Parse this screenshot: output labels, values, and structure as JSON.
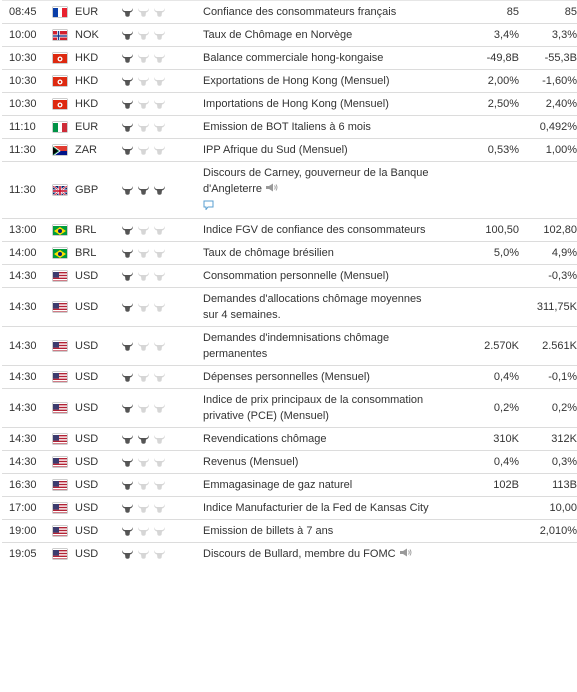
{
  "rows": [
    {
      "time": "08:45",
      "flag": "fr",
      "currency": "EUR",
      "importance": 1,
      "event": "Confiance des consommateurs français",
      "actual": "85",
      "previous": "85"
    },
    {
      "time": "10:00",
      "flag": "no",
      "currency": "NOK",
      "importance": 1,
      "event": "Taux de Chômage en Norvège",
      "actual": "3,4%",
      "previous": "3,3%"
    },
    {
      "time": "10:30",
      "flag": "hk",
      "currency": "HKD",
      "importance": 1,
      "event": "Balance commerciale hong-kongaise",
      "actual": "-49,8B",
      "previous": "-55,3B"
    },
    {
      "time": "10:30",
      "flag": "hk",
      "currency": "HKD",
      "importance": 1,
      "event": "Exportations de Hong Kong (Mensuel)",
      "actual": "2,00%",
      "previous": "-1,60%"
    },
    {
      "time": "10:30",
      "flag": "hk",
      "currency": "HKD",
      "importance": 1,
      "event": "Importations de Hong Kong (Mensuel)",
      "actual": "2,50%",
      "previous": "2,40%"
    },
    {
      "time": "11:10",
      "flag": "it",
      "currency": "EUR",
      "importance": 1,
      "event": "Emission de BOT Italiens à 6 mois",
      "actual": "",
      "previous": "0,492%"
    },
    {
      "time": "11:30",
      "flag": "za",
      "currency": "ZAR",
      "importance": 1,
      "event": "IPP Afrique du Sud (Mensuel)",
      "actual": "0,53%",
      "previous": "1,00%"
    },
    {
      "time": "11:30",
      "flag": "gb",
      "currency": "GBP",
      "importance": 3,
      "event": "Discours de Carney, gouverneur de la Banque d'Angleterre",
      "actual": "",
      "previous": "",
      "speech": true,
      "comment": true
    },
    {
      "time": "13:00",
      "flag": "br",
      "currency": "BRL",
      "importance": 1,
      "event": "Indice FGV de confiance des consommateurs",
      "actual": "100,50",
      "previous": "102,80"
    },
    {
      "time": "14:00",
      "flag": "br",
      "currency": "BRL",
      "importance": 1,
      "event": "Taux de chômage brésilien",
      "actual": "5,0%",
      "previous": "4,9%"
    },
    {
      "time": "14:30",
      "flag": "us",
      "currency": "USD",
      "importance": 1,
      "event": "Consommation personnelle (Mensuel)",
      "actual": "",
      "previous": "-0,3%"
    },
    {
      "time": "14:30",
      "flag": "us",
      "currency": "USD",
      "importance": 1,
      "event": "Demandes d'allocations chômage moyennes sur 4 semaines.",
      "actual": "",
      "previous": "311,75K"
    },
    {
      "time": "14:30",
      "flag": "us",
      "currency": "USD",
      "importance": 1,
      "event": "Demandes d'indemnisations chômage permanentes",
      "actual": "2.570K",
      "previous": "2.561K"
    },
    {
      "time": "14:30",
      "flag": "us",
      "currency": "USD",
      "importance": 1,
      "event": "Dépenses personnelles (Mensuel)",
      "actual": "0,4%",
      "previous": "-0,1%"
    },
    {
      "time": "14:30",
      "flag": "us",
      "currency": "USD",
      "importance": 1,
      "event": "Indice de prix principaux de la consommation privative (PCE) (Mensuel)",
      "actual": "0,2%",
      "previous": "0,2%"
    },
    {
      "time": "14:30",
      "flag": "us",
      "currency": "USD",
      "importance": 2,
      "event": "Revendications chômage",
      "actual": "310K",
      "previous": "312K"
    },
    {
      "time": "14:30",
      "flag": "us",
      "currency": "USD",
      "importance": 1,
      "event": "Revenus (Mensuel)",
      "actual": "0,4%",
      "previous": "0,3%"
    },
    {
      "time": "16:30",
      "flag": "us",
      "currency": "USD",
      "importance": 1,
      "event": "Emmagasinage de gaz naturel",
      "actual": "102B",
      "previous": "113B"
    },
    {
      "time": "17:00",
      "flag": "us",
      "currency": "USD",
      "importance": 1,
      "event": "Indice Manufacturier de la Fed de Kansas City",
      "actual": "",
      "previous": "10,00"
    },
    {
      "time": "19:00",
      "flag": "us",
      "currency": "USD",
      "importance": 1,
      "event": "Emission de billets à 7 ans",
      "actual": "",
      "previous": "2,010%"
    },
    {
      "time": "19:05",
      "flag": "us",
      "currency": "USD",
      "importance": 1,
      "event": "Discours de Bullard, membre du FOMC",
      "actual": "",
      "previous": "",
      "speech": true
    }
  ]
}
